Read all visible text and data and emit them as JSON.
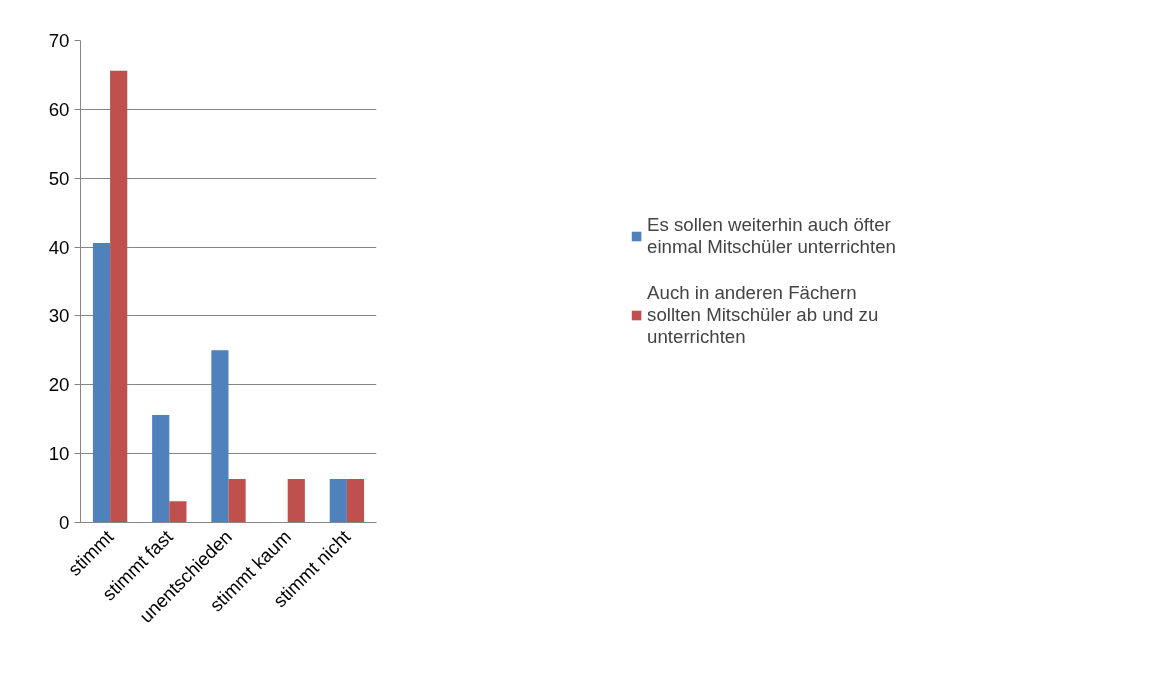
{
  "chart_data": {
    "type": "bar",
    "categories": [
      "stimmt",
      "stimmt fast",
      "unentschieden",
      "stimmt kaum",
      "stimmt nicht"
    ],
    "series": [
      {
        "name": "Es sollen weiterhin auch öfter einmal Mitschüler unterrichten",
        "color": "#4f81bd",
        "values": [
          40.6,
          15.6,
          25,
          0,
          6.3
        ]
      },
      {
        "name": "Auch in anderen Fächern sollten Mitschüler ab und zu unterrichten",
        "color": "#c0504d",
        "values": [
          65.6,
          3.1,
          6.3,
          6.3,
          6.3
        ]
      }
    ],
    "ylim": [
      0,
      70
    ],
    "yticks": [
      0,
      10,
      20,
      30,
      40,
      50,
      60,
      70
    ],
    "grid": "y",
    "legend": "right"
  }
}
